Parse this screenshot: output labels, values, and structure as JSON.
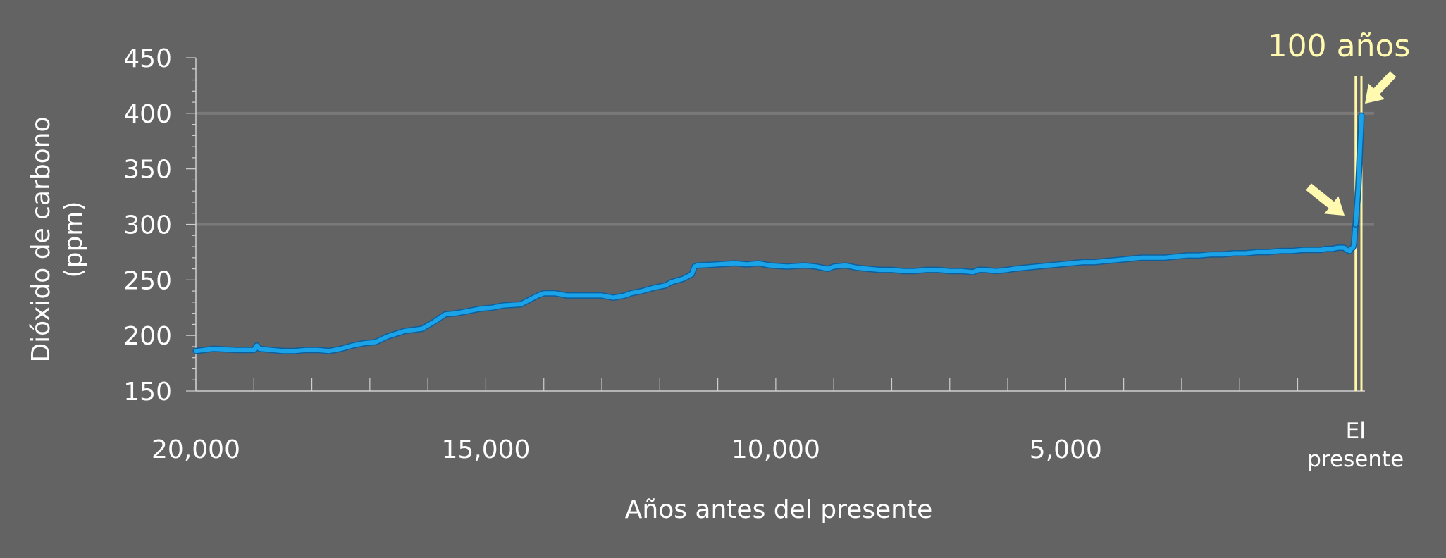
{
  "chart_data": {
    "type": "line",
    "ylabel_lines": [
      "Dióxido de carbono",
      "(ppm)"
    ],
    "xlabel": "Años antes del presente",
    "xlim": [
      20000,
      -100
    ],
    "ylim": [
      150,
      450
    ],
    "y_ticks": [
      150,
      200,
      250,
      300,
      350,
      400,
      450
    ],
    "x_tick_labels": [
      {
        "value": 20000,
        "lines": [
          "20,000"
        ]
      },
      {
        "value": 15000,
        "lines": [
          "15,000"
        ]
      },
      {
        "value": 10000,
        "lines": [
          "10,000"
        ]
      },
      {
        "value": 5000,
        "lines": [
          "5,000"
        ]
      },
      {
        "value": 0,
        "lines": [
          "El",
          "presente"
        ]
      }
    ],
    "x_minor_ticks": [
      20000,
      19000,
      18000,
      17000,
      16000,
      15000,
      14000,
      13000,
      12000,
      11000,
      10000,
      9000,
      8000,
      7000,
      6000,
      5000,
      4000,
      3000,
      2000,
      1000,
      0
    ],
    "highlighted_gridlines": [
      300,
      400
    ],
    "series": [
      {
        "color": "#1aa3e8",
        "outline": "#0f5e9c",
        "x": [
          20000,
          19700,
          19300,
          19000,
          18950,
          18900,
          18700,
          18500,
          18300,
          18100,
          17900,
          17700,
          17500,
          17300,
          17100,
          16900,
          16700,
          16400,
          16100,
          15900,
          15700,
          15500,
          15300,
          15100,
          14900,
          14700,
          14400,
          14100,
          14000,
          13800,
          13600,
          13400,
          13200,
          13000,
          12800,
          12600,
          12500,
          12300,
          12100,
          11900,
          11800,
          11600,
          11450,
          11400,
          11350,
          11300,
          11000,
          10700,
          10500,
          10300,
          10100,
          9800,
          9500,
          9300,
          9100,
          9000,
          8800,
          8600,
          8400,
          8200,
          8000,
          7800,
          7600,
          7400,
          7200,
          7000,
          6800,
          6600,
          6500,
          6400,
          6200,
          6000,
          5900,
          5700,
          5500,
          5300,
          5100,
          4900,
          4700,
          4500,
          4300,
          4100,
          3900,
          3700,
          3500,
          3300,
          3100,
          2900,
          2700,
          2500,
          2300,
          2100,
          1900,
          1700,
          1500,
          1300,
          1100,
          900,
          700,
          600,
          500,
          400,
          300,
          200,
          150,
          100,
          80,
          50,
          40,
          30,
          20,
          10,
          0
        ],
        "y": [
          186,
          188,
          187,
          187,
          191,
          188,
          187,
          186,
          186,
          187,
          187,
          186,
          188,
          191,
          193,
          194,
          199,
          204,
          206,
          212,
          219,
          220,
          222,
          224,
          225,
          227,
          228,
          236,
          238,
          238,
          236,
          236,
          236,
          236,
          234,
          236,
          238,
          240,
          243,
          245,
          248,
          251,
          255,
          262,
          263,
          263,
          264,
          265,
          264,
          265,
          263,
          262,
          263,
          262,
          260,
          262,
          263,
          261,
          260,
          259,
          259,
          258,
          258,
          259,
          259,
          258,
          258,
          257,
          259,
          259,
          258,
          259,
          260,
          261,
          262,
          263,
          264,
          265,
          266,
          266,
          267,
          268,
          269,
          270,
          270,
          270,
          271,
          272,
          272,
          273,
          273,
          274,
          274,
          275,
          275,
          276,
          276,
          277,
          277,
          277,
          278,
          278,
          279,
          279,
          277,
          276,
          278,
          279,
          280,
          282,
          288,
          295,
          300
        ]
      },
      {
        "color": "#1aa3e8",
        "outline": "#0f5e9c",
        "x": [
          0,
          -15,
          -30,
          -45,
          -60,
          -75,
          -90,
          -100
        ],
        "y": [
          300,
          310,
          320,
          333,
          350,
          368,
          385,
          398
        ]
      }
    ],
    "annotations": {
      "label": "100 años",
      "band_x": [
        0,
        -100
      ]
    }
  }
}
